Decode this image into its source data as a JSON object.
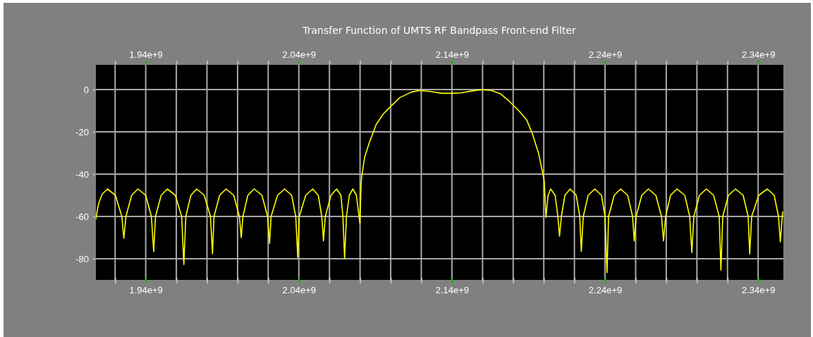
{
  "chart_data": {
    "type": "line",
    "title": "Transfer Function of UMTS RF Bandpass Front-end Filter",
    "xlim": [
      1907000000.0,
      2356500000.0
    ],
    "x2lim": [
      1907000000.0,
      2356500000.0
    ],
    "ylim": [
      -90,
      12
    ],
    "xticks": [
      {
        "value": 1920000000.0,
        "label": null
      },
      {
        "value": 1940000000.0,
        "label": "1.94e+9"
      },
      {
        "value": 1960000000.0,
        "label": null
      },
      {
        "value": 1980000000.0,
        "label": null
      },
      {
        "value": 2000000000.0,
        "label": null
      },
      {
        "value": 2020000000.0,
        "label": null
      },
      {
        "value": 2040000000.0,
        "label": "2.04e+9"
      },
      {
        "value": 2060000000.0,
        "label": null
      },
      {
        "value": 2080000000.0,
        "label": null
      },
      {
        "value": 2100000000.0,
        "label": null
      },
      {
        "value": 2120000000.0,
        "label": null
      },
      {
        "value": 2140000000.0,
        "label": "2.14e+9"
      },
      {
        "value": 2160000000.0,
        "label": null
      },
      {
        "value": 2180000000.0,
        "label": null
      },
      {
        "value": 2200000000.0,
        "label": null
      },
      {
        "value": 2220000000.0,
        "label": null
      },
      {
        "value": 2240000000.0,
        "label": "2.24e+9"
      },
      {
        "value": 2260000000.0,
        "label": null
      },
      {
        "value": 2280000000.0,
        "label": null
      },
      {
        "value": 2300000000.0,
        "label": null
      },
      {
        "value": 2320000000.0,
        "label": null
      },
      {
        "value": 2340000000.0,
        "label": "2.34e+9"
      }
    ],
    "x2ticks": [
      {
        "value": 1920000000.0,
        "label": null
      },
      {
        "value": 1940000000.0,
        "label": "1.94e+9"
      },
      {
        "value": 1960000000.0,
        "label": null
      },
      {
        "value": 1980000000.0,
        "label": null
      },
      {
        "value": 2000000000.0,
        "label": null
      },
      {
        "value": 2020000000.0,
        "label": null
      },
      {
        "value": 2040000000.0,
        "label": "2.04e+9"
      },
      {
        "value": 2060000000.0,
        "label": null
      },
      {
        "value": 2080000000.0,
        "label": null
      },
      {
        "value": 2100000000.0,
        "label": null
      },
      {
        "value": 2120000000.0,
        "label": null
      },
      {
        "value": 2140000000.0,
        "label": "2.14e+9"
      },
      {
        "value": 2160000000.0,
        "label": null
      },
      {
        "value": 2180000000.0,
        "label": null
      },
      {
        "value": 2200000000.0,
        "label": null
      },
      {
        "value": 2220000000.0,
        "label": null
      },
      {
        "value": 2240000000.0,
        "label": "2.24e+9"
      },
      {
        "value": 2260000000.0,
        "label": null
      },
      {
        "value": 2280000000.0,
        "label": null
      },
      {
        "value": 2300000000.0,
        "label": null
      },
      {
        "value": 2320000000.0,
        "label": null
      },
      {
        "value": 2340000000.0,
        "label": "2.34e+9"
      }
    ],
    "yticks": [
      -80,
      -60,
      -40,
      -20,
      0
    ],
    "grid": true,
    "series": [
      {
        "color": "#ffff00",
        "x": [
          1907300000.0,
          1909200000.0,
          1911500000.0,
          1915000000.0,
          1920200000.0,
          1924400000.0,
          1925700000.0,
          1927100000.0,
          1930800000.0,
          1934900000.0,
          1940000000.0,
          1943700000.0,
          1945200000.0,
          1946400000.0,
          1950100000.0,
          1954100000.0,
          1959300000.0,
          1963500000.0,
          1964900000.0,
          1966200000.0,
          1969500000.0,
          1973300000.0,
          1978200000.0,
          1982300000.0,
          1983600000.0,
          1984600000.0,
          1988300000.0,
          1992500000.0,
          1997500000.0,
          2001200000.0,
          2002400000.0,
          2003500000.0,
          2006700000.0,
          2010900000.0,
          2015900000.0,
          2019600000.0,
          2020900000.0,
          2021900000.0,
          2026100000.0,
          2030700000.0,
          2035300000.0,
          2038000000.0,
          2039300000.0,
          2040300000.0,
          2044500000.0,
          2049100000.0,
          2052700000.0,
          2055000000.0,
          2056100000.0,
          2057300000.0,
          2061000000.0,
          2064700000.0,
          2067500000.0,
          2068800000.0,
          2069900000.0,
          2071100000.0,
          2073000000.0,
          2075300000.0,
          2077600000.0,
          2079000000.0,
          2079900000.0,
          2080700000.0,
          2081300000.0,
          2083000000.0,
          2085900000.0,
          2090500000.0,
          2095100000.0,
          2099700000.0,
          2106000000.0,
          2113500000.0,
          2119000000.0,
          2125900000.0,
          2133600000.0,
          2140500000.0,
          2145700000.0,
          2152000000.0,
          2158900000.0,
          2165800000.0,
          2171900000.0,
          2177300000.0,
          2184200000.0,
          2188800000.0,
          2192600000.0,
          2196500000.0,
          2198800000.0,
          2200300000.0,
          2201400000.0,
          2202800000.0,
          2204500000.0,
          2207400000.0,
          2209200000.0,
          2210300000.0,
          2211500000.0,
          2213800000.0,
          2217200000.0,
          2221200000.0,
          2223500000.0,
          2224500000.0,
          2225800000.0,
          2229000000.0,
          2233300000.0,
          2237700000.0,
          2240000000.0,
          2241300000.0,
          2242300000.0,
          2246000000.0,
          2250200000.0,
          2254800000.0,
          2258000000.0,
          2259100000.0,
          2260300000.0,
          2264000000.0,
          2268300000.0,
          2273200000.0,
          2276900000.0,
          2278200000.0,
          2279600000.0,
          2282800000.0,
          2287000000.0,
          2292100000.0,
          2295300000.0,
          2296700000.0,
          2298000000.0,
          2301700000.0,
          2306200000.0,
          2310900000.0,
          2314600000.0,
          2315700000.0,
          2316900000.0,
          2320600000.0,
          2325300000.0,
          2330200000.0,
          2333500000.0,
          2334500000.0,
          2335800000.0,
          2340400000.0,
          2346000000.0,
          2350500000.0,
          2353300000.0,
          2354500000.0,
          2356000000.0
        ],
        "values": [
          -61.6,
          -54,
          -49.5,
          -47,
          -50,
          -60,
          -70.3,
          -60,
          -50,
          -47,
          -50,
          -60,
          -76.6,
          -60,
          -50,
          -47,
          -50,
          -60,
          -82.7,
          -60,
          -50,
          -47,
          -50,
          -60,
          -77.7,
          -60,
          -50,
          -47,
          -50,
          -60,
          -70,
          -60,
          -50,
          -47,
          -50,
          -60,
          -72.7,
          -60,
          -50,
          -47,
          -50,
          -60,
          -79.3,
          -60,
          -50,
          -47,
          -50,
          -60,
          -71.6,
          -60,
          -50,
          -47,
          -50,
          -60,
          -79.9,
          -60,
          -50,
          -47,
          -50,
          -58,
          -63.2,
          -44,
          -40,
          -32,
          -25.4,
          -16.6,
          -11.6,
          -8.2,
          -3.8,
          -1.2,
          -0.4,
          -0.9,
          -1.8,
          -1.8,
          -1.6,
          -0.8,
          -0.1,
          -0.4,
          -2.1,
          -5.4,
          -10.4,
          -14.3,
          -21,
          -29.9,
          -37.7,
          -43.2,
          -60.4,
          -50,
          -47,
          -50,
          -60,
          -69.3,
          -60,
          -50,
          -47,
          -50,
          -60,
          -76.6,
          -60,
          -50,
          -47,
          -50,
          -60,
          -86.6,
          -60,
          -50,
          -47,
          -50,
          -60,
          -71.6,
          -60,
          -50,
          -47,
          -50,
          -60,
          -71.6,
          -60,
          -50,
          -47,
          -50,
          -60,
          -77.1,
          -60,
          -50,
          -47,
          -50,
          -60,
          -85.4,
          -60,
          -50,
          -47,
          -50,
          -60,
          -77.7,
          -60,
          -50,
          -47,
          -50,
          -60,
          -72.1,
          -57.7
        ]
      }
    ]
  }
}
